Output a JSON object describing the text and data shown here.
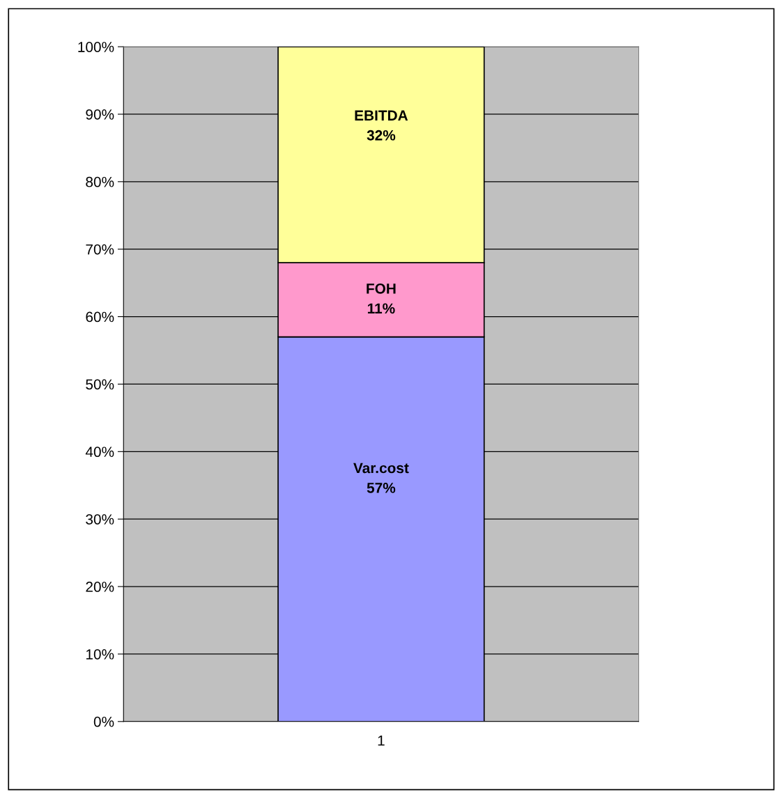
{
  "chart_data": {
    "type": "bar",
    "stacked": true,
    "categories": [
      "1"
    ],
    "series": [
      {
        "name": "Var.cost",
        "color": "#9999ff",
        "values": [
          57
        ],
        "value_labels": [
          "57%"
        ]
      },
      {
        "name": "FOH",
        "color": "#ff99cc",
        "values": [
          11
        ],
        "value_labels": [
          "11%"
        ]
      },
      {
        "name": "EBITDA",
        "color": "#ffff99",
        "values": [
          32
        ],
        "value_labels": [
          "32%"
        ]
      }
    ],
    "ylim": [
      0,
      100
    ],
    "yticks": [
      {
        "value": 0,
        "label": "0%"
      },
      {
        "value": 10,
        "label": "10%"
      },
      {
        "value": 20,
        "label": "20%"
      },
      {
        "value": 30,
        "label": "30%"
      },
      {
        "value": 40,
        "label": "40%"
      },
      {
        "value": 50,
        "label": "50%"
      },
      {
        "value": 60,
        "label": "60%"
      },
      {
        "value": 70,
        "label": "70%"
      },
      {
        "value": 80,
        "label": "80%"
      },
      {
        "value": 90,
        "label": "90%"
      },
      {
        "value": 100,
        "label": "100%"
      }
    ],
    "grid": "y",
    "legend": false
  }
}
